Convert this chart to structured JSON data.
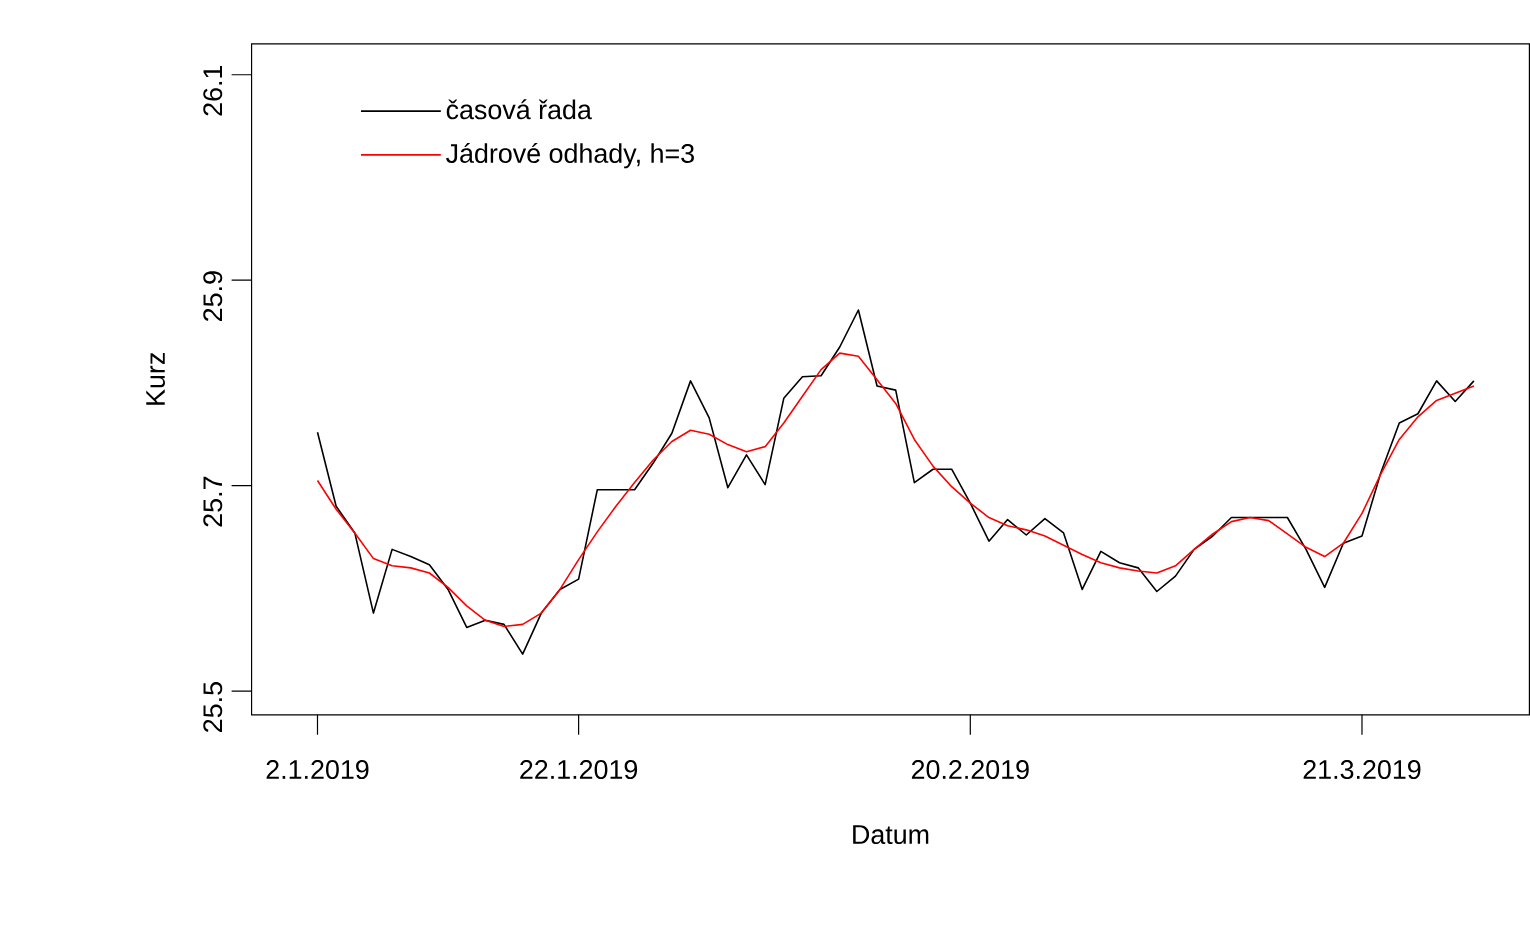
{
  "chart_data": {
    "type": "line",
    "xlabel": "Datum",
    "ylabel": "Kurz",
    "categories": [
      "2.1.2019",
      null,
      null,
      null,
      null,
      null,
      null,
      null,
      null,
      null,
      null,
      null,
      null,
      null,
      "22.1.2019",
      null,
      null,
      null,
      null,
      null,
      null,
      null,
      null,
      null,
      null,
      null,
      null,
      null,
      null,
      null,
      null,
      null,
      null,
      null,
      null,
      "20.2.2019",
      null,
      null,
      null,
      null,
      null,
      null,
      null,
      null,
      null,
      null,
      null,
      null,
      null,
      null,
      null,
      null,
      null,
      null,
      null,
      null,
      "21.3.2019",
      null,
      null,
      null,
      null,
      null,
      null
    ],
    "series": [
      {
        "name": "časová řada",
        "color": "#000000",
        "values": [
          25.752,
          25.68,
          25.654,
          25.576,
          25.638,
          25.631,
          25.623,
          25.599,
          25.562,
          25.569,
          25.565,
          25.536,
          25.576,
          25.599,
          25.609,
          25.696,
          25.696,
          25.696,
          25.722,
          25.751,
          25.802,
          25.766,
          25.698,
          25.73,
          25.701,
          25.785,
          25.806,
          25.807,
          25.835,
          25.871,
          25.797,
          25.793,
          25.703,
          25.716,
          25.716,
          25.683,
          25.646,
          25.667,
          25.652,
          25.668,
          25.654,
          25.599,
          25.636,
          25.625,
          25.62,
          25.597,
          25.612,
          25.638,
          25.651,
          25.669,
          25.669,
          25.669,
          25.669,
          25.638,
          25.601,
          25.644,
          25.651,
          25.712,
          25.761,
          25.77,
          25.802,
          25.782,
          25.802
        ]
      },
      {
        "name": "Jádrové odhady, h=3",
        "color": "#ff0000",
        "values": [
          25.705,
          25.677,
          25.654,
          25.629,
          25.622,
          25.62,
          25.615,
          25.601,
          25.583,
          25.569,
          25.563,
          25.565,
          25.576,
          25.599,
          25.628,
          25.655,
          25.68,
          25.703,
          25.725,
          25.743,
          25.754,
          25.75,
          25.74,
          25.733,
          25.738,
          25.761,
          25.787,
          25.813,
          25.829,
          25.826,
          25.803,
          25.78,
          25.745,
          25.719,
          25.699,
          25.683,
          25.669,
          25.661,
          25.657,
          25.651,
          25.642,
          25.633,
          25.625,
          25.62,
          25.617,
          25.615,
          25.622,
          25.638,
          25.653,
          25.665,
          25.669,
          25.666,
          25.653,
          25.64,
          25.631,
          25.644,
          25.673,
          25.711,
          25.745,
          25.767,
          25.783,
          25.79,
          25.797
        ]
      }
    ],
    "ylim": [
      25.477,
      26.13
    ],
    "yticks": [
      25.5,
      25.7,
      25.9,
      26.1
    ],
    "legend": "top left"
  }
}
